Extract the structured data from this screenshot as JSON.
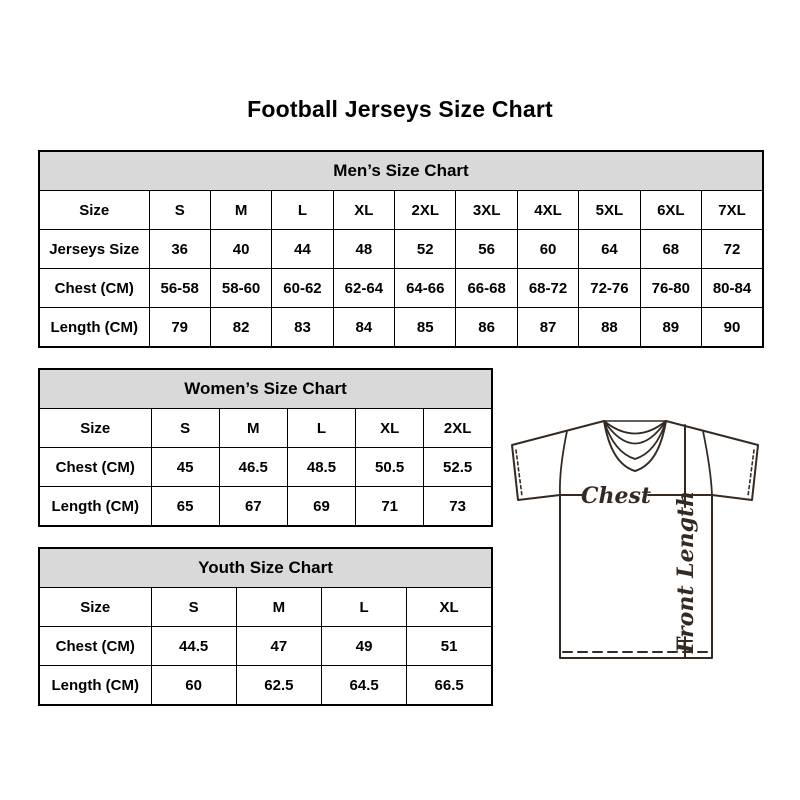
{
  "page": {
    "title": "Football Jerseys Size Chart"
  },
  "colors": {
    "table_header_bg": "#d9d9d9",
    "table_border": "#000000",
    "jersey_line": "#352a22"
  },
  "tables": [
    {
      "id": "mens",
      "title": "Men’s Size Chart",
      "rows": [
        [
          "Size",
          "S",
          "M",
          "L",
          "XL",
          "2XL",
          "3XL",
          "4XL",
          "5XL",
          "6XL",
          "7XL"
        ],
        [
          "Jerseys Size",
          "36",
          "40",
          "44",
          "48",
          "52",
          "56",
          "60",
          "64",
          "68",
          "72"
        ],
        [
          "Chest (CM)",
          "56-58",
          "58-60",
          "60-62",
          "62-64",
          "64-66",
          "66-68",
          "68-72",
          "72-76",
          "76-80",
          "80-84"
        ],
        [
          "Length (CM)",
          "79",
          "82",
          "83",
          "84",
          "85",
          "86",
          "87",
          "88",
          "89",
          "90"
        ]
      ]
    },
    {
      "id": "womens",
      "title": "Women’s Size Chart",
      "rows": [
        [
          "Size",
          "S",
          "M",
          "L",
          "XL",
          "2XL"
        ],
        [
          "Chest (CM)",
          "45",
          "46.5",
          "48.5",
          "50.5",
          "52.5"
        ],
        [
          "Length (CM)",
          "65",
          "67",
          "69",
          "71",
          "73"
        ]
      ]
    },
    {
      "id": "youth",
      "title": "Youth Size Chart",
      "rows": [
        [
          "Size",
          "S",
          "M",
          "L",
          "XL"
        ],
        [
          "Chest (CM)",
          "44.5",
          "47",
          "49",
          "51"
        ],
        [
          "Length (CM)",
          "60",
          "62.5",
          "64.5",
          "66.5"
        ]
      ]
    }
  ],
  "diagram": {
    "chest_label": "Chest",
    "front_length_label": "Front Length"
  }
}
